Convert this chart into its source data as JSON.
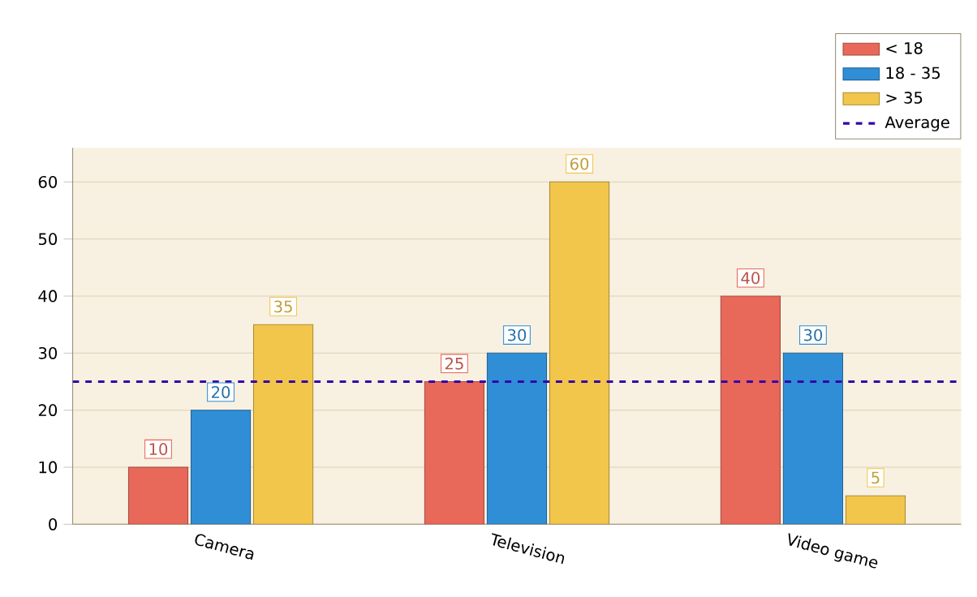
{
  "chart_data": {
    "type": "bar",
    "categories": [
      "Camera",
      "Television",
      "Video game"
    ],
    "series": [
      {
        "name": "< 18",
        "color": "#e8685a",
        "values": [
          10,
          25,
          40
        ]
      },
      {
        "name": "18 - 35",
        "color": "#2f8ed6",
        "values": [
          20,
          30,
          30
        ]
      },
      {
        "name": "> 35",
        "color": "#f2c64a",
        "values": [
          35,
          60,
          5
        ]
      }
    ],
    "ylim": [
      0,
      66
    ],
    "yticks": [
      0,
      10,
      20,
      30,
      40,
      50,
      60
    ],
    "grid": "y",
    "legend": "top right",
    "data_labels": true,
    "ref_lines": [
      {
        "axis": "y",
        "value": 25,
        "label": "Average",
        "color": "#3300aa",
        "line_style": "dashed"
      }
    ]
  }
}
